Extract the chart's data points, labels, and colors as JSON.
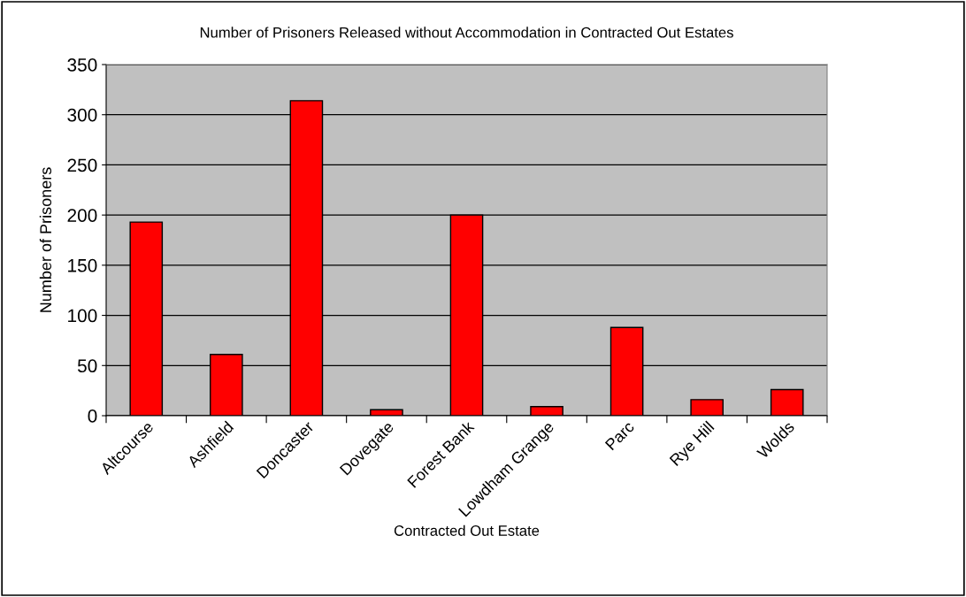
{
  "chart_data": {
    "type": "bar",
    "title": "Number of Prisoners Released without Accommodation in Contracted Out Estates",
    "xlabel": "Contracted Out Estate",
    "ylabel": "Number of Prisoners",
    "categories": [
      "Altcourse",
      "Ashfield",
      "Doncaster",
      "Dovegate",
      "Forest Bank",
      "Lowdham Grange",
      "Parc",
      "Rye Hill",
      "Wolds"
    ],
    "values": [
      193,
      61,
      314,
      6,
      200,
      9,
      88,
      16,
      26
    ],
    "color": "#ff0000",
    "ylim": [
      0,
      350
    ],
    "yticks": [
      0,
      50,
      100,
      150,
      200,
      250,
      300,
      350
    ],
    "grid": "y",
    "legend": false
  }
}
